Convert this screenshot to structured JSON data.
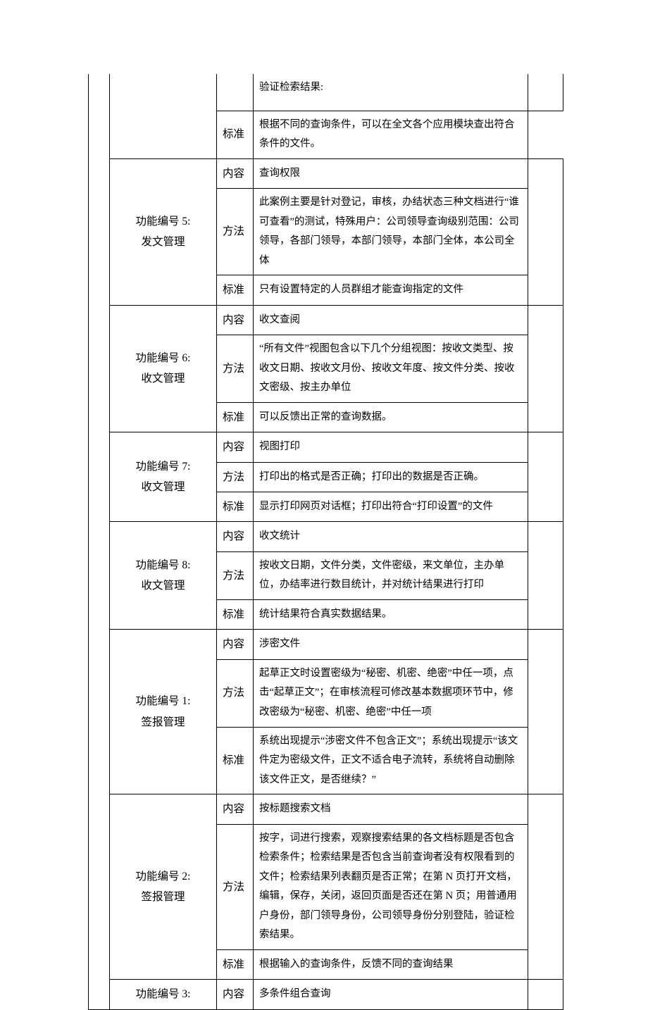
{
  "labels": {
    "content": "内容",
    "method": "方法",
    "standard": "标准"
  },
  "rows": [
    {
      "funcTitle": "",
      "items": [
        {
          "type": "desc_only",
          "desc": "验证检索结果:",
          "tall": true
        },
        {
          "type": "standard",
          "desc": "根据不同的查询条件，可以在全文各个应用模块查出符合条件的文件。"
        }
      ],
      "noTopFunc": true
    },
    {
      "funcTitle": "功能编号 5:<br>发文管理",
      "items": [
        {
          "type": "content",
          "desc": "查询权限"
        },
        {
          "type": "method",
          "desc": "此案例主要是针对登记，审核，办结状态三种文档进行“谁可查看”的测试，特殊用户：公司领导查询级别范围：公司领导，各部门领导，本部门领导，本部门全体，本公司全体"
        },
        {
          "type": "standard",
          "desc": "只有设置特定的人员群组才能查询指定的文件"
        }
      ]
    },
    {
      "funcTitle": "功能编号 6:<br>收文管理",
      "items": [
        {
          "type": "content",
          "desc": "收文查阅"
        },
        {
          "type": "method",
          "desc": "“所有文件”视图包含以下几个分组视图：按收文类型、按收文日期、按收文月份、按收文年度、按文件分类、按收文密级、按主办单位"
        },
        {
          "type": "standard",
          "desc": "可以反馈出正常的查询数据。"
        }
      ]
    },
    {
      "funcTitle": "功能编号 7:<br>收文管理",
      "items": [
        {
          "type": "content",
          "desc": "视图打印"
        },
        {
          "type": "method",
          "desc": "打印出的格式是否正确；打印出的数据是否正确。"
        },
        {
          "type": "standard",
          "desc": "显示打印网页对话框；打印出符合“打印设置”的文件"
        }
      ]
    },
    {
      "funcTitle": "功能编号 8:<br>收文管理",
      "items": [
        {
          "type": "content",
          "desc": "收文统计"
        },
        {
          "type": "method",
          "desc": "按收文日期，文件分类，文件密级，来文单位，主办单位，办结率进行数目统计，并对统计结果进行打印"
        },
        {
          "type": "standard",
          "desc": "统计结果符合真实数据结果。"
        }
      ]
    },
    {
      "funcTitle": "功能编号 1:<br>签报管理",
      "items": [
        {
          "type": "content",
          "desc": "涉密文件"
        },
        {
          "type": "method",
          "desc": "起草正文时设置密级为“秘密、机密、绝密”中任一项，点击“起草正文”；在审核流程可修改基本数据项环节中，修改密级为“秘密、机密、绝密”中任一项"
        },
        {
          "type": "standard",
          "desc": "系统出现提示“涉密文件不包含正文”；系统出现提示“该文件定为密级文件，正文不适合电子流转，系统将自动删除该文件正文，是否继续？”"
        }
      ]
    },
    {
      "funcTitle": "功能编号 2:<br>签报管理",
      "items": [
        {
          "type": "content",
          "desc": "按标题搜索文档"
        },
        {
          "type": "method",
          "desc": "按字，词进行搜索，观察搜索结果的各文档标题是否包含检索条件；检索结果是否包含当前查询者没有权限看到的文件；检索结果列表翻页是否正常；在第 N 页打开文档，编辑，保存，关闭，返回页面是否还在第 N 页；用普通用户身份，部门领导身份，公司领导身份分别登陆，验证检索结果。"
        },
        {
          "type": "standard",
          "desc": "根据输入的查询条件，反馈不同的查询结果"
        }
      ]
    },
    {
      "funcTitle": "功能编号 3:",
      "items": [
        {
          "type": "content",
          "desc": "多条件组合查询"
        }
      ],
      "singleRow": true
    }
  ]
}
